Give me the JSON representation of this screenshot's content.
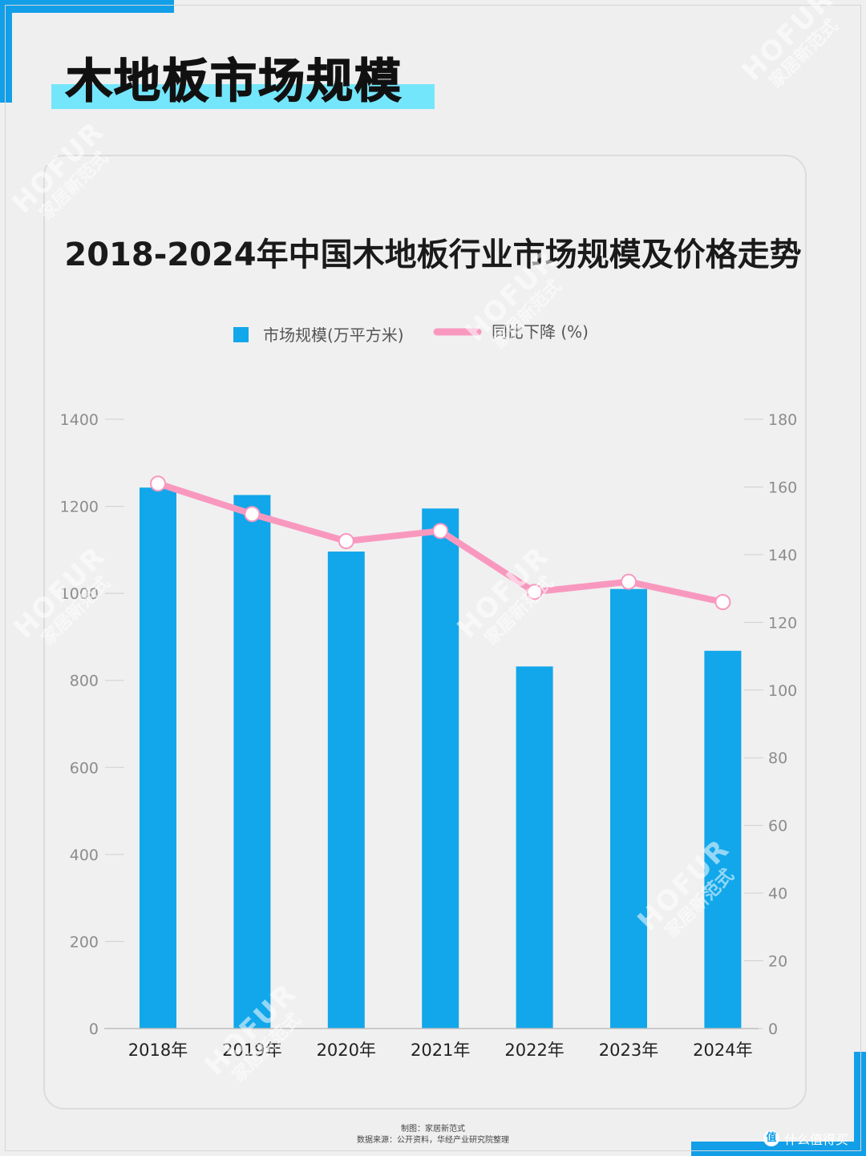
{
  "page": {
    "heading": "木地板市场规模",
    "chart_title": "2018-2024年中国木地板行业市场规模及价格走势",
    "footer_line1": "制图：家居新范式",
    "footer_line2": "数据来源：公开资料，华经产业研究院整理",
    "brand_label": "什么值得买",
    "brand_icon_text": "值",
    "watermark_latin": "HOFUR",
    "watermark_cn": "家居新范式",
    "accent_color": "#129fe8",
    "highlight_color": "#74e6fb"
  },
  "chart_data": {
    "type": "bar+line",
    "categories": [
      "2018年",
      "2019年",
      "2020年",
      "2021年",
      "2022年",
      "2023年",
      "2024年"
    ],
    "series": [
      {
        "name": "市场规模(万平方米)",
        "type": "bar",
        "axis": "left",
        "color": "#12a7ea",
        "values": [
          1243,
          1226,
          1096,
          1195,
          832,
          1010,
          868
        ]
      },
      {
        "name": "同比下降 (%)",
        "type": "line",
        "axis": "right",
        "color": "#f998bf",
        "values": [
          161,
          152,
          144,
          147,
          129,
          132,
          126
        ]
      }
    ],
    "y_left": {
      "range": [
        0,
        1400
      ],
      "ticks": [
        "0",
        "200",
        "400",
        "600",
        "800",
        "1000",
        "1200",
        "1400"
      ]
    },
    "y_right": {
      "range": [
        0,
        180
      ],
      "ticks": [
        "0",
        "20",
        "40",
        "60",
        "80",
        "100",
        "120",
        "140",
        "160",
        "180"
      ]
    },
    "grid": false,
    "legend_position": "top-center"
  }
}
